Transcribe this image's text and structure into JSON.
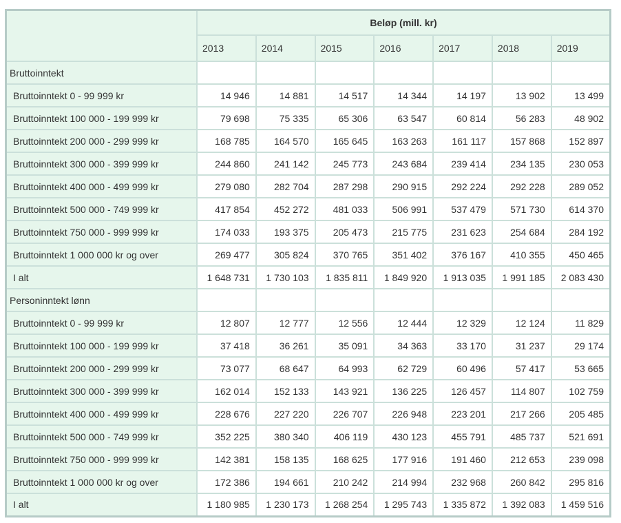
{
  "colors": {
    "header_bg": "#e6f6ec",
    "label_bg": "#e6f6ec",
    "data_cell_bg": "#ffffff",
    "grid_border": "#cbe0da",
    "outer_border": "#b6cbc7",
    "text": "#333333"
  },
  "chart_data": {
    "type": "table",
    "title": "Beløp (mill. kr)",
    "columns": [
      "2013",
      "2014",
      "2015",
      "2016",
      "2017",
      "2018",
      "2019"
    ],
    "layout": {
      "label_column_header": "",
      "grid": true,
      "section_rows_have_empty_cells": true
    },
    "sections": [
      {
        "label": "Bruttoinntekt",
        "rows": [
          {
            "label": "Bruttoinntekt 0 - 99 999 kr",
            "values": [
              "14 946",
              "14 881",
              "14 517",
              "14 344",
              "14 197",
              "13 902",
              "13 499"
            ]
          },
          {
            "label": "Bruttoinntekt 100 000 - 199 999 kr",
            "values": [
              "79 698",
              "75 335",
              "65 306",
              "63 547",
              "60 814",
              "56 283",
              "48 902"
            ]
          },
          {
            "label": "Bruttoinntekt 200 000 - 299 999 kr",
            "values": [
              "168 785",
              "164 570",
              "165 645",
              "163 263",
              "161 117",
              "157 868",
              "152 897"
            ]
          },
          {
            "label": "Bruttoinntekt 300 000 - 399 999 kr",
            "values": [
              "244 860",
              "241 142",
              "245 773",
              "243 684",
              "239 414",
              "234 135",
              "230 053"
            ]
          },
          {
            "label": "Bruttoinntekt 400 000 - 499 999 kr",
            "values": [
              "279 080",
              "282 704",
              "287 298",
              "290 915",
              "292 224",
              "292 228",
              "289 052"
            ]
          },
          {
            "label": "Bruttoinntekt 500 000 - 749 999 kr",
            "values": [
              "417 854",
              "452 272",
              "481 033",
              "506 991",
              "537 479",
              "571 730",
              "614 370"
            ]
          },
          {
            "label": "Bruttoinntekt 750 000 - 999 999 kr",
            "values": [
              "174 033",
              "193 375",
              "205 473",
              "215 775",
              "231 623",
              "254 684",
              "284 192"
            ]
          },
          {
            "label": "Bruttoinntekt 1 000 000 kr og over",
            "values": [
              "269 477",
              "305 824",
              "370 765",
              "351 402",
              "376 167",
              "410 355",
              "450 465"
            ]
          },
          {
            "label": "I alt",
            "values": [
              "1 648 731",
              "1 730 103",
              "1 835 811",
              "1 849 920",
              "1 913 035",
              "1 991 185",
              "2 083 430"
            ]
          }
        ]
      },
      {
        "label": "Personinntekt lønn",
        "rows": [
          {
            "label": "Bruttoinntekt 0 - 99 999 kr",
            "values": [
              "12 807",
              "12 777",
              "12 556",
              "12 444",
              "12 329",
              "12 124",
              "11 829"
            ]
          },
          {
            "label": "Bruttoinntekt 100 000 - 199 999 kr",
            "values": [
              "37 418",
              "36 261",
              "35 091",
              "34 363",
              "33 170",
              "31 237",
              "29 174"
            ]
          },
          {
            "label": "Bruttoinntekt 200 000 - 299 999 kr",
            "values": [
              "73 077",
              "68 647",
              "64 993",
              "62 729",
              "60 496",
              "57 417",
              "53 665"
            ]
          },
          {
            "label": "Bruttoinntekt 300 000 - 399 999 kr",
            "values": [
              "162 014",
              "152 133",
              "143 921",
              "136 225",
              "126 457",
              "114 807",
              "102 759"
            ]
          },
          {
            "label": "Bruttoinntekt 400 000 - 499 999 kr",
            "values": [
              "228 676",
              "227 220",
              "226 707",
              "226 948",
              "223 201",
              "217 266",
              "205 485"
            ]
          },
          {
            "label": "Bruttoinntekt 500 000 - 749 999 kr",
            "values": [
              "352 225",
              "380 340",
              "406 119",
              "430 123",
              "455 791",
              "485 737",
              "521 691"
            ]
          },
          {
            "label": "Bruttoinntekt 750 000 - 999 999 kr",
            "values": [
              "142 381",
              "158 135",
              "168 625",
              "177 916",
              "191 460",
              "212 653",
              "239 098"
            ]
          },
          {
            "label": "Bruttoinntekt 1 000 000 kr og over",
            "values": [
              "172 386",
              "194 661",
              "210 242",
              "214 994",
              "232 968",
              "260 842",
              "295 816"
            ]
          },
          {
            "label": "I alt",
            "values": [
              "1 180 985",
              "1 230 173",
              "1 268 254",
              "1 295 743",
              "1 335 872",
              "1 392 083",
              "1 459 516"
            ]
          }
        ]
      }
    ]
  }
}
